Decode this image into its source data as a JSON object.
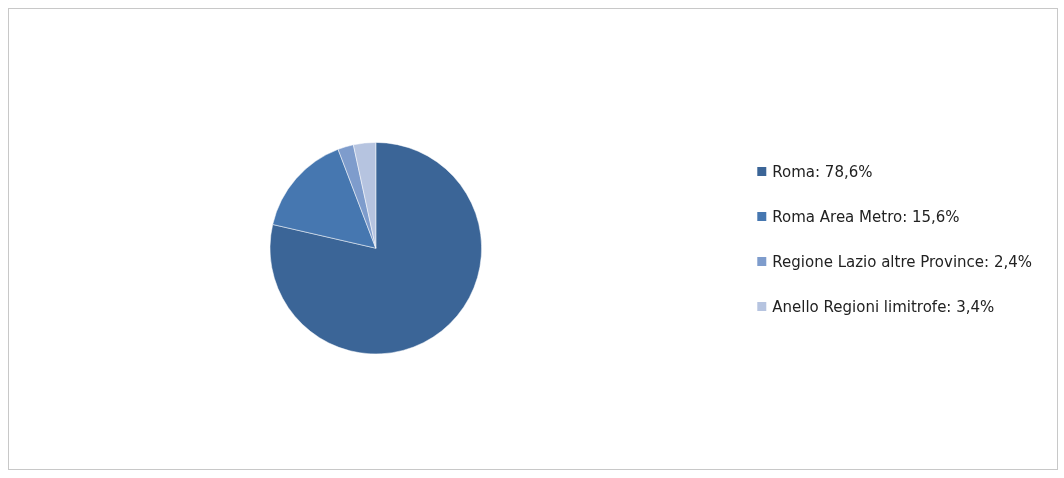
{
  "chart_data": {
    "type": "pie",
    "categories": [
      "Roma: 78,6%",
      "Roma Area Metro: 15,6%",
      "Regione Lazio altre Province: 2,4%",
      "Anello Regioni limitrofe: 3,4%"
    ],
    "values": [
      78.6,
      15.6,
      2.4,
      3.4
    ],
    "colors": [
      "#3b6597",
      "#4677b0",
      "#7e9ccc",
      "#b6c4e0"
    ],
    "legend": "right"
  }
}
